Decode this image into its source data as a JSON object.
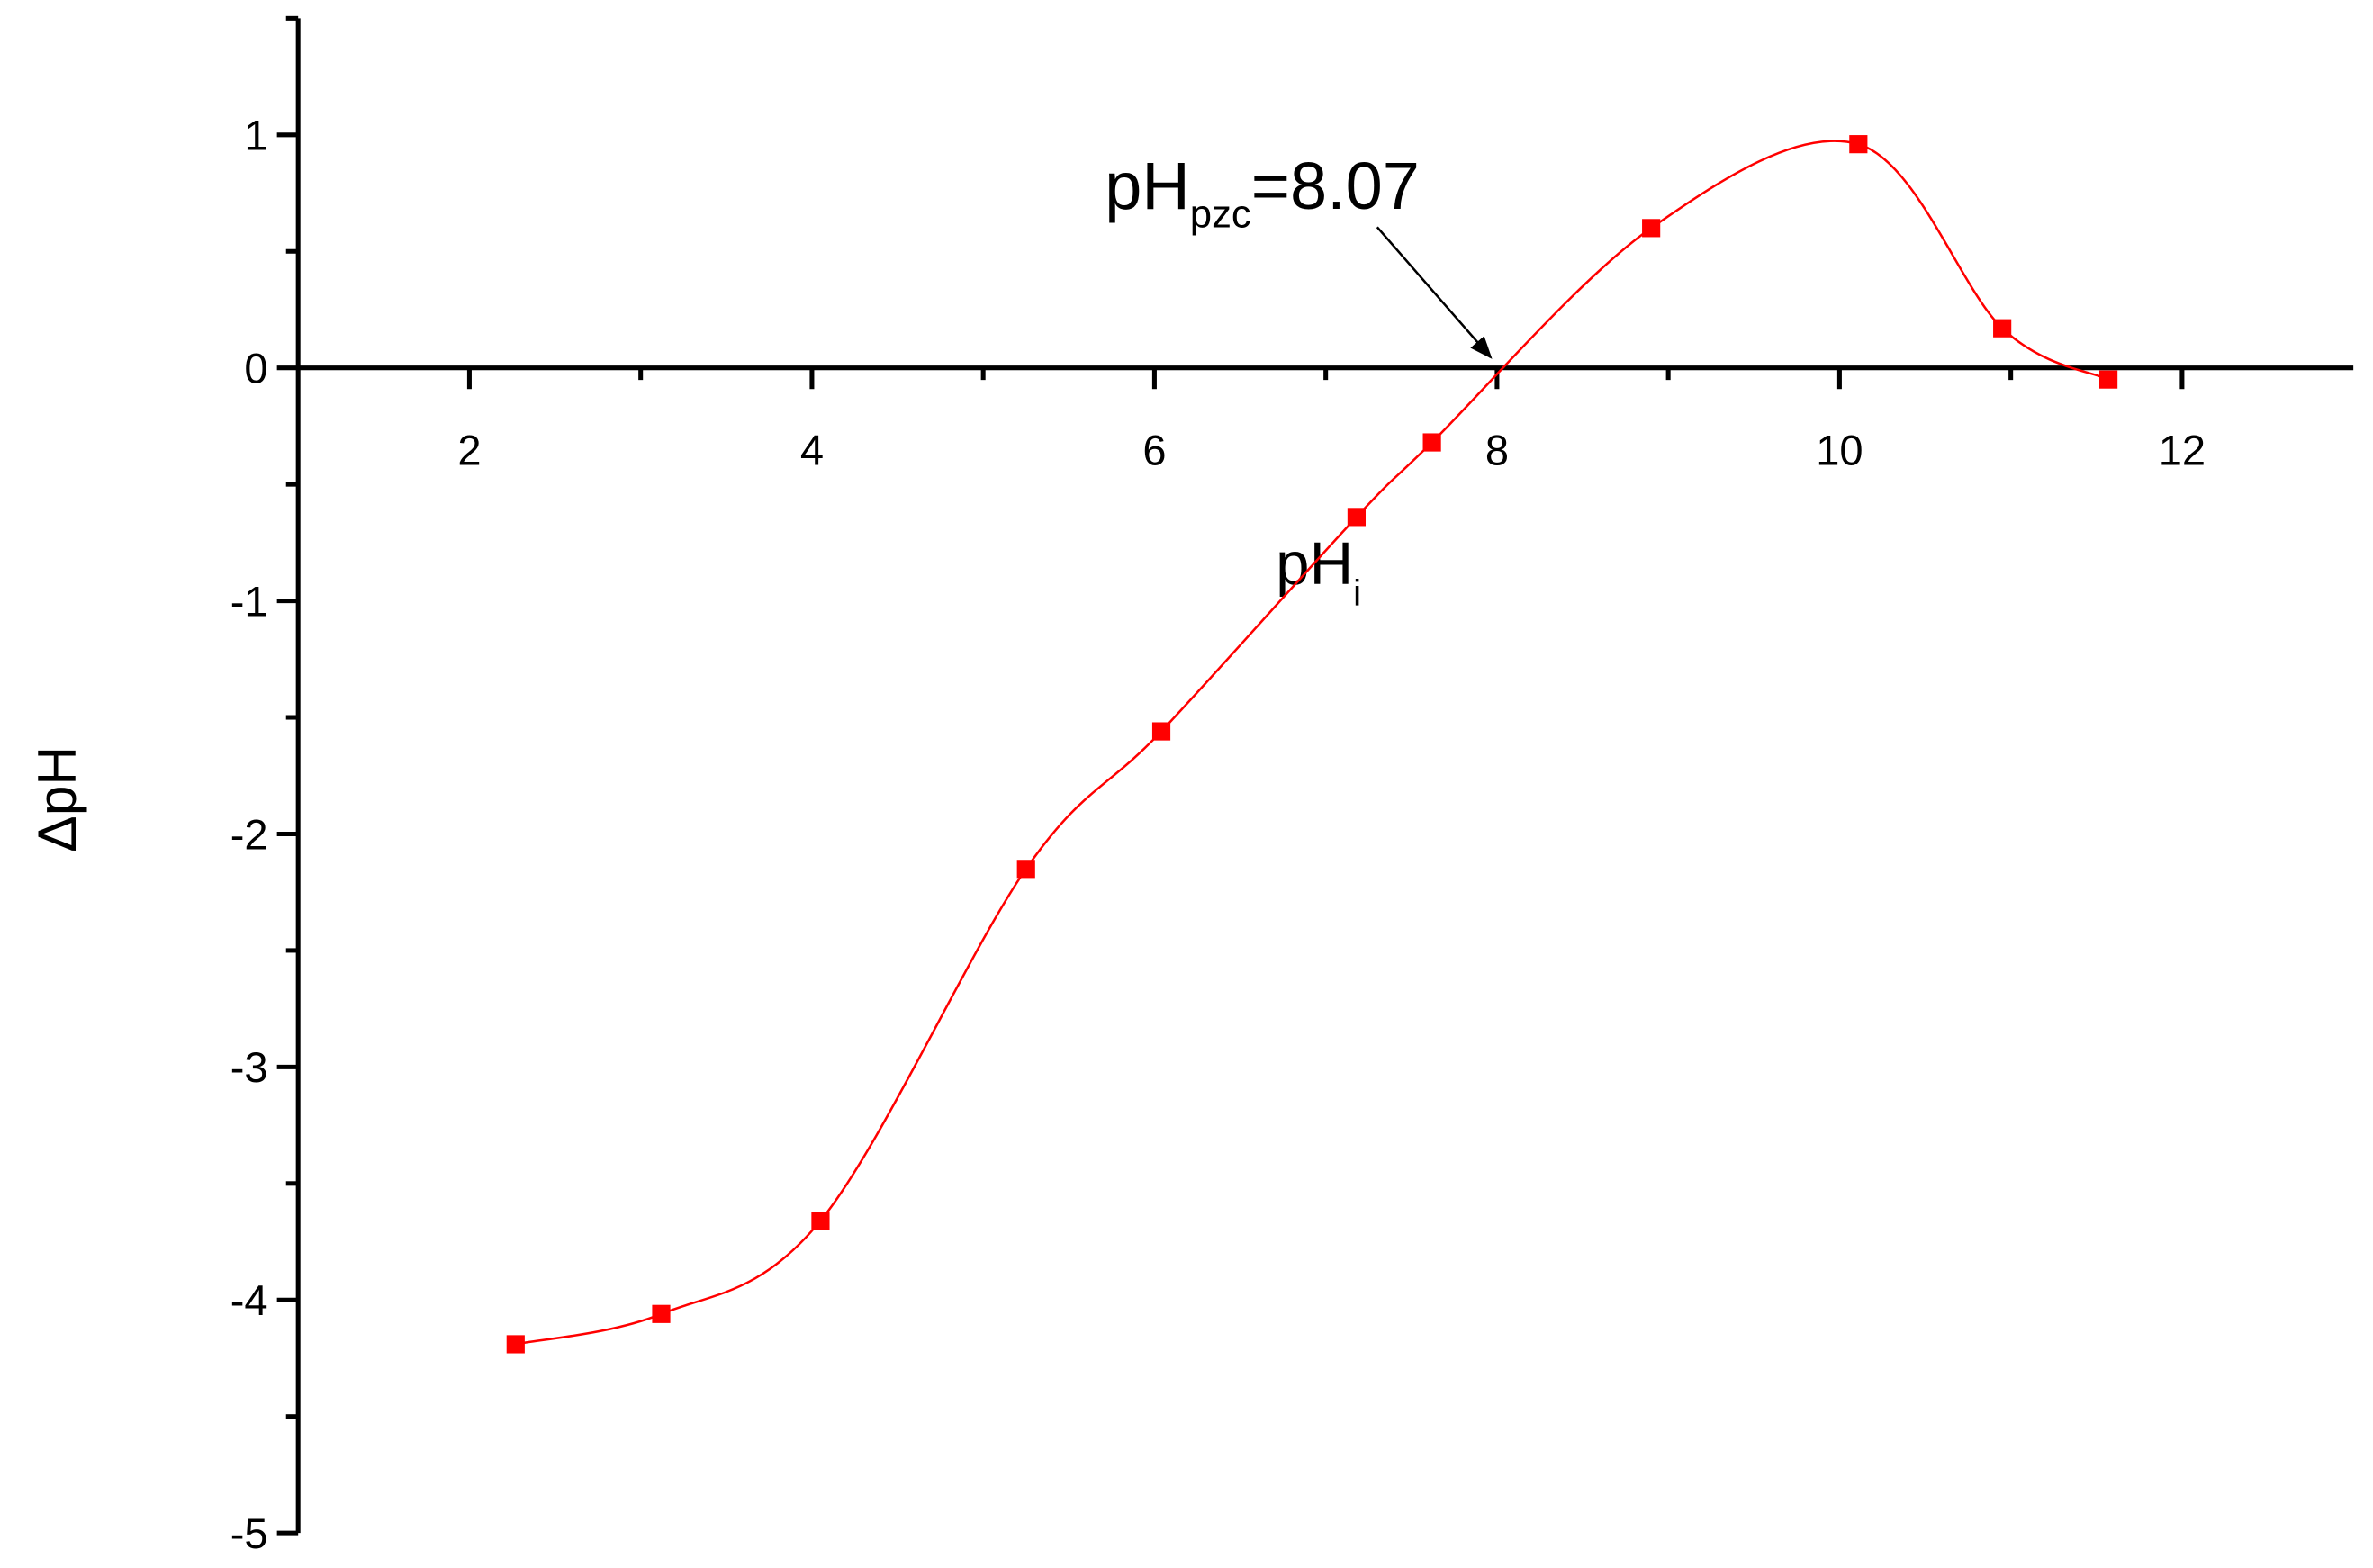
{
  "chart_data": {
    "type": "line",
    "annotation": {
      "text": "pH",
      "subscript": "pzc",
      "suffix": "=8.07"
    },
    "xlabel": {
      "text": "pH",
      "subscript": "i"
    },
    "ylabel": "ΔpH",
    "x": [
      2.27,
      3.12,
      4.05,
      5.25,
      6.04,
      7.18,
      7.62,
      8.9,
      10.11,
      10.95,
      11.57
    ],
    "values": [
      -4.19,
      -4.06,
      -3.66,
      -2.15,
      -1.56,
      -0.64,
      -0.32,
      0.6,
      0.96,
      0.17,
      -0.05
    ],
    "color": "#ff0000",
    "xlim": [
      1,
      13
    ],
    "ylim": [
      -5,
      1.5
    ],
    "xticks": [
      2,
      4,
      6,
      8,
      10,
      12
    ],
    "yticks": [
      -5,
      -4,
      -3,
      -2,
      -1,
      0,
      1
    ],
    "xminorticks": [
      3,
      5,
      7,
      9,
      11
    ],
    "yminorticks": [
      -4.5,
      -3.5,
      -2.5,
      -1.5,
      -0.5,
      0.5,
      1.5
    ]
  }
}
